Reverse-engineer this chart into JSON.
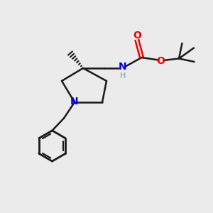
{
  "background_color": "#ebebeb",
  "bond_color": "#1a1a1a",
  "N_color": "#0000ee",
  "O_color": "#ee0000",
  "H_color": "#6699aa",
  "figsize": [
    3.0,
    3.0
  ],
  "dpi": 100,
  "xlim": [
    0,
    10
  ],
  "ylim": [
    0,
    10
  ]
}
